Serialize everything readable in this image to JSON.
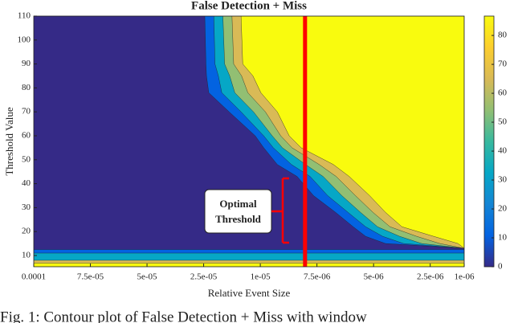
{
  "chart_data": {
    "type": "contour",
    "title": "False Detection + Miss",
    "x_label": "Relative Event Size",
    "y_label": "Threshold Value",
    "caption": "Fig. 1: Contour plot of False Detection + Miss with window",
    "xlim": [
      0,
      7.6
    ],
    "ylim": [
      5.3,
      110
    ],
    "xticks": [
      {
        "value": 0,
        "label": "0.0001"
      },
      {
        "value": 1,
        "label": "7.5e-05"
      },
      {
        "value": 2,
        "label": "5e-05"
      },
      {
        "value": 3,
        "label": "2.5e-05"
      },
      {
        "value": 4,
        "label": "1e-05"
      },
      {
        "value": 5,
        "label": "7.5e-06"
      },
      {
        "value": 6,
        "label": "5e-06"
      },
      {
        "value": 7,
        "label": "2.5e-06"
      },
      {
        "value": 7.6,
        "label": "1e-06"
      }
    ],
    "yticks": [
      10,
      20,
      30,
      40,
      50,
      60,
      70,
      80,
      90,
      100,
      110
    ],
    "colormap": [
      "#352a87",
      "#0363e1",
      "#1485d4",
      "#06a7c6",
      "#38b99e",
      "#92bf73",
      "#d9ba56",
      "#fcce2e",
      "#f9fb0e"
    ],
    "colorbar": {
      "lim": [
        0,
        86.7
      ],
      "ticks": [
        0,
        10,
        20,
        30,
        40,
        50,
        60,
        70,
        80
      ]
    },
    "contours": [
      {
        "level": 10,
        "x": [
          3.02,
          3.04,
          3.05,
          3.09,
          3.45,
          3.91,
          4.06,
          4.3,
          4.65,
          4.94,
          5.33,
          5.64,
          5.86,
          6.21,
          7.6,
          7.6
        ],
        "y": [
          110,
          90,
          85,
          78,
          70,
          60,
          55,
          48,
          43,
          35,
          28,
          22,
          18,
          15,
          13,
          110
        ]
      },
      {
        "level": 30,
        "x": [
          3.18,
          3.2,
          3.26,
          3.32,
          3.66,
          4.06,
          4.23,
          4.55,
          4.88,
          5.19,
          5.55,
          5.86,
          6.16,
          6.53,
          7.6,
          7.6
        ],
        "y": [
          110,
          90,
          85,
          78,
          70,
          60,
          55,
          48,
          43,
          35,
          28,
          22,
          18,
          15,
          13,
          110
        ]
      },
      {
        "level": 50,
        "x": [
          3.34,
          3.37,
          3.46,
          3.55,
          3.88,
          4.21,
          4.39,
          4.8,
          5.11,
          5.44,
          5.77,
          6.07,
          6.46,
          6.85,
          7.6,
          7.6
        ],
        "y": [
          110,
          90,
          85,
          78,
          70,
          60,
          55,
          48,
          43,
          35,
          28,
          22,
          18,
          15,
          13,
          110
        ]
      },
      {
        "level": 70,
        "x": [
          3.5,
          3.53,
          3.67,
          3.78,
          4.09,
          4.36,
          4.56,
          5.04,
          5.34,
          5.68,
          5.99,
          6.29,
          6.76,
          7.17,
          7.6,
          7.6
        ],
        "y": [
          110,
          90,
          85,
          78,
          70,
          60,
          55,
          48,
          43,
          35,
          28,
          22,
          18,
          15,
          13,
          110
        ]
      },
      {
        "level": 85,
        "x": [
          3.66,
          3.69,
          3.87,
          4.01,
          4.3,
          4.51,
          4.72,
          5.29,
          5.57,
          5.93,
          6.21,
          6.5,
          7.06,
          7.49,
          7.6,
          7.6
        ],
        "y": [
          110,
          90,
          85,
          78,
          70,
          60,
          55,
          48,
          43,
          35,
          28,
          22,
          18,
          15,
          13,
          110
        ]
      },
      {
        "level": 10,
        "x": [
          0,
          7.6,
          7.6,
          0
        ],
        "y": [
          12.5,
          12.5,
          5.3,
          5.3
        ]
      },
      {
        "level": 30,
        "x": [
          0,
          7.6,
          7.6,
          0
        ],
        "y": [
          11,
          11,
          5.3,
          5.3
        ]
      },
      {
        "level": 70,
        "x": [
          0,
          7.6,
          7.6,
          0
        ],
        "y": [
          8,
          8,
          5.3,
          5.3
        ]
      },
      {
        "level": 85,
        "x": [
          0,
          7.6,
          7.6,
          0
        ],
        "y": [
          6.8,
          6.8,
          5.3,
          5.3
        ]
      }
    ],
    "threshold": {
      "x": 4.79,
      "color": "#ff0000"
    },
    "annotation": [
      "Optimal",
      "Threshold"
    ]
  }
}
